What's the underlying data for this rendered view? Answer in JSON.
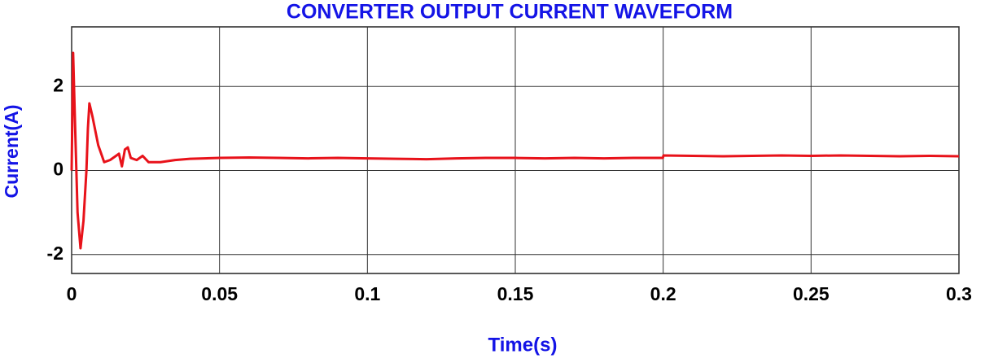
{
  "chart_data": {
    "type": "line",
    "title": "CONVERTER OUTPUT CURRENT WAVEFORM",
    "xlabel": "Time(s)",
    "ylabel": "Current(A)",
    "x": [
      0,
      0.0005,
      0.001,
      0.002,
      0.003,
      0.004,
      0.005,
      0.0055,
      0.006,
      0.007,
      0.009,
      0.011,
      0.013,
      0.015,
      0.016,
      0.017,
      0.018,
      0.019,
      0.02,
      0.022,
      0.024,
      0.026,
      0.03,
      0.035,
      0.04,
      0.05,
      0.06,
      0.07,
      0.08,
      0.09,
      0.1,
      0.11,
      0.12,
      0.13,
      0.14,
      0.15,
      0.16,
      0.17,
      0.18,
      0.19,
      0.1999,
      0.2001,
      0.21,
      0.22,
      0.23,
      0.24,
      0.25,
      0.26,
      0.27,
      0.28,
      0.29,
      0.3
    ],
    "series": [
      {
        "name": "Current",
        "color": "#e8121a",
        "values": [
          0,
          2.8,
          1.5,
          -1.0,
          -1.85,
          -1.2,
          0,
          1.0,
          1.6,
          1.3,
          0.6,
          0.2,
          0.25,
          0.35,
          0.4,
          0.1,
          0.5,
          0.55,
          0.3,
          0.25,
          0.35,
          0.2,
          0.2,
          0.25,
          0.28,
          0.3,
          0.31,
          0.3,
          0.29,
          0.3,
          0.29,
          0.28,
          0.27,
          0.29,
          0.3,
          0.3,
          0.29,
          0.3,
          0.29,
          0.3,
          0.3,
          0.36,
          0.35,
          0.34,
          0.35,
          0.36,
          0.35,
          0.36,
          0.35,
          0.34,
          0.35,
          0.34
        ]
      }
    ],
    "xlim": [
      0,
      0.3
    ],
    "ylim": [
      -2.45,
      3.42
    ],
    "xticks": [
      0,
      0.05,
      0.1,
      0.15,
      0.2,
      0.25,
      0.3
    ],
    "yticks": [
      -2,
      0,
      2
    ],
    "grid": true
  }
}
